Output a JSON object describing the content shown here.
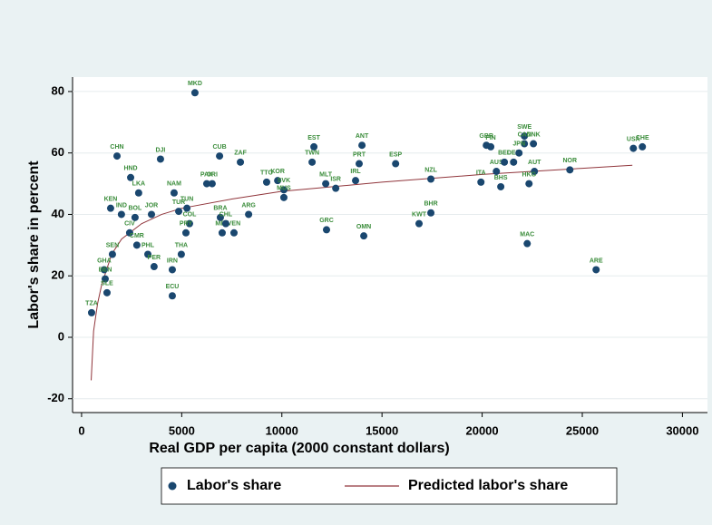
{
  "chart_data": {
    "type": "scatter",
    "x_label": "Real GDP per capita (2000 constant dollars)",
    "y_label": "Labor's share in percent",
    "xlim": [
      -450,
      31250
    ],
    "xticks": [
      0,
      5000,
      10000,
      15000,
      20000,
      25000,
      30000
    ],
    "ylim": [
      -24.5,
      84.7
    ],
    "yticks": [
      -20,
      0,
      20,
      40,
      60,
      80
    ],
    "grid": "y",
    "series": [
      {
        "name": "Labor's share",
        "type": "scatter",
        "color": "#1a476f",
        "labels": [
          "TZA",
          "MKD",
          "CHN",
          "HND",
          "LKA",
          "DJI",
          "CUB",
          "ZAF",
          "PAK",
          "CRI",
          "NAM",
          "KEN",
          "IND",
          "BOL",
          "CIV",
          "CMR",
          "SEN",
          "GHA",
          "BEN",
          "SLE",
          "JOR",
          "PHL",
          "PER",
          "IRN",
          "ECU",
          "THA",
          "TUR",
          "TUN",
          "COL",
          "PRY",
          "MEX",
          "VEN",
          "BRA",
          "CHL",
          "ARG",
          "TTO",
          "KOR",
          "SVK",
          "MUS",
          "EST",
          "TWN",
          "GRC",
          "MLT",
          "ISR",
          "ANT",
          "PRT",
          "IRL",
          "OMN",
          "ESP",
          "NZL",
          "BHR",
          "KWT",
          "GBR",
          "FIN",
          "ITA",
          "AUS",
          "BHS",
          "BEL",
          "DEU",
          "SWE",
          "CAN",
          "DNK",
          "JPN",
          "AUT",
          "HKG",
          "MAC",
          "NOR",
          "ARE",
          "USA",
          "CHE"
        ],
        "x": [
          500,
          5660,
          1770,
          2450,
          2850,
          3940,
          6890,
          7930,
          6250,
          6520,
          4620,
          1450,
          1990,
          2670,
          2400,
          2760,
          1540,
          1130,
          1180,
          1270,
          3490,
          3310,
          3620,
          4530,
          4530,
          4980,
          4850,
          5260,
          5390,
          5210,
          7020,
          7610,
          6930,
          7200,
          8340,
          9240,
          9790,
          10100,
          10100,
          11600,
          11510,
          12230,
          12190,
          12690,
          14000,
          13860,
          13680,
          14090,
          15680,
          17440,
          17440,
          16850,
          20210,
          20430,
          19940,
          20710,
          20930,
          21110,
          21570,
          22110,
          22110,
          22560,
          21840,
          22610,
          22340,
          22250,
          24380,
          25690,
          27550,
          28000
        ],
        "values": [
          8,
          79.6,
          59,
          52,
          47,
          58,
          59,
          57,
          50,
          50,
          47,
          42,
          40,
          39,
          34,
          30,
          27,
          22,
          19,
          14.5,
          40,
          27,
          23,
          22,
          13.5,
          27,
          41,
          42,
          37,
          34,
          34,
          34,
          39,
          37,
          40,
          50.5,
          51,
          48,
          45.5,
          62,
          57,
          35,
          50,
          48.5,
          62.5,
          56.5,
          51,
          33,
          56.5,
          51.5,
          40.5,
          37,
          62.5,
          62,
          50.5,
          54,
          49,
          57,
          57,
          65.5,
          63,
          63,
          60,
          54,
          50,
          30.5,
          54.5,
          22,
          61.5,
          62
        ]
      },
      {
        "name": "Predicted labor's share",
        "type": "line",
        "color": "#90353b",
        "x": [
          480,
          600,
          800,
          1000,
          1500,
          2000,
          3000,
          4000,
          5000,
          7500,
          10000,
          15000,
          20000,
          25000,
          27500
        ],
        "values": [
          -14,
          2,
          11,
          17,
          27,
          32,
          37,
          40,
          42,
          45,
          47.5,
          50.5,
          53,
          55,
          56
        ]
      }
    ]
  }
}
